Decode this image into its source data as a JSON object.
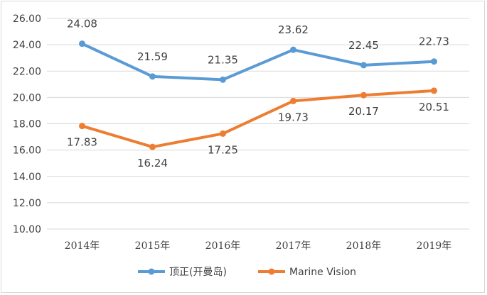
{
  "chart_data": {
    "type": "line",
    "title": "",
    "xlabel": "",
    "ylabel": "",
    "categories": [
      "2014年",
      "2015年",
      "2016年",
      "2017年",
      "2018年",
      "2019年"
    ],
    "y_ticks": [
      "10.00",
      "12.00",
      "14.00",
      "16.00",
      "18.00",
      "20.00",
      "22.00",
      "24.00",
      "26.00"
    ],
    "ylim": [
      10,
      26
    ],
    "grid": "horizontal",
    "legend_position": "bottom",
    "series": [
      {
        "name": "顶正(开曼岛)",
        "color": "#5b9bd5",
        "values": [
          24.08,
          21.59,
          21.35,
          23.62,
          22.45,
          22.73
        ],
        "labels": [
          "24.08",
          "21.59",
          "21.35",
          "23.62",
          "22.45",
          "22.73"
        ],
        "label_position": "above"
      },
      {
        "name": "Marine Vision",
        "color": "#ed7d31",
        "values": [
          17.83,
          16.24,
          17.25,
          19.73,
          20.17,
          20.51
        ],
        "labels": [
          "17.83",
          "16.24",
          "17.25",
          "19.73",
          "20.17",
          "20.51"
        ],
        "label_position": "below"
      }
    ]
  }
}
